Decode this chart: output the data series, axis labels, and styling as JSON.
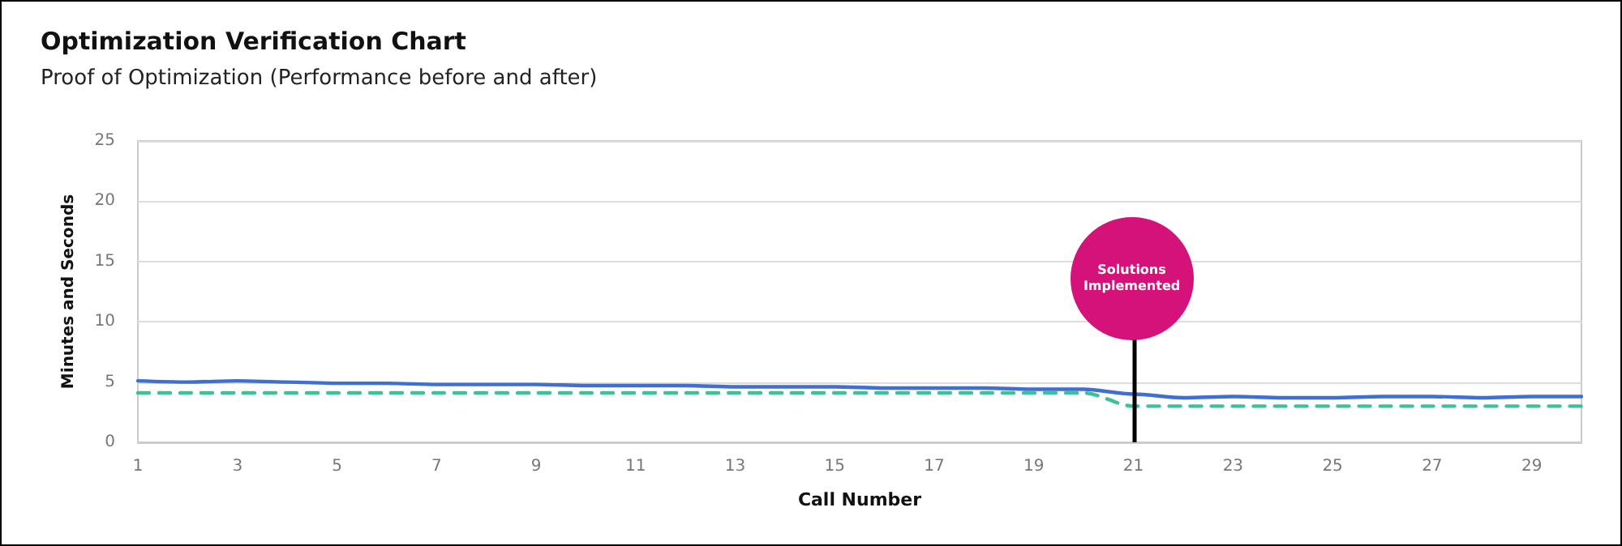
{
  "chart_data": {
    "type": "line",
    "title": "Optimization Verification Chart",
    "subtitle": "Proof of Optimization (Performance before and after)",
    "xlabel": "Call Number",
    "ylabel": "Minutes and Seconds",
    "x": [
      1,
      2,
      3,
      4,
      5,
      6,
      7,
      8,
      9,
      10,
      11,
      12,
      13,
      14,
      15,
      16,
      17,
      18,
      19,
      20,
      21,
      22,
      23,
      24,
      25,
      26,
      27,
      28,
      29,
      30
    ],
    "series": [
      {
        "color": "#3f6fd0",
        "line_style": "solid",
        "values": [
          5.1,
          5.0,
          5.1,
          5.0,
          4.9,
          4.9,
          4.8,
          4.8,
          4.8,
          4.7,
          4.7,
          4.7,
          4.6,
          4.6,
          4.6,
          4.5,
          4.5,
          4.5,
          4.4,
          4.4,
          4.0,
          3.7,
          3.8,
          3.7,
          3.7,
          3.8,
          3.8,
          3.7,
          3.8,
          3.8
        ]
      },
      {
        "color": "#3cc29a",
        "line_style": "dashed",
        "values": [
          4.1,
          4.1,
          4.1,
          4.1,
          4.1,
          4.1,
          4.1,
          4.1,
          4.1,
          4.1,
          4.1,
          4.1,
          4.1,
          4.1,
          4.1,
          4.1,
          4.1,
          4.1,
          4.1,
          4.1,
          3.0,
          3.0,
          3.0,
          3.0,
          3.0,
          3.0,
          3.0,
          3.0,
          3.0,
          3.0
        ]
      }
    ],
    "xlim": [
      1,
      30
    ],
    "xticks": [
      1,
      3,
      5,
      7,
      9,
      11,
      13,
      15,
      17,
      19,
      21,
      23,
      25,
      27,
      29
    ],
    "ylim": [
      0,
      25
    ],
    "yticks": [
      0,
      5,
      10,
      15,
      20,
      25
    ],
    "grid": "y",
    "marker": "none",
    "ref_lines": [
      {
        "axis": "x",
        "value": 21,
        "label": "Solutions Implemented",
        "color": "#000000"
      }
    ]
  }
}
